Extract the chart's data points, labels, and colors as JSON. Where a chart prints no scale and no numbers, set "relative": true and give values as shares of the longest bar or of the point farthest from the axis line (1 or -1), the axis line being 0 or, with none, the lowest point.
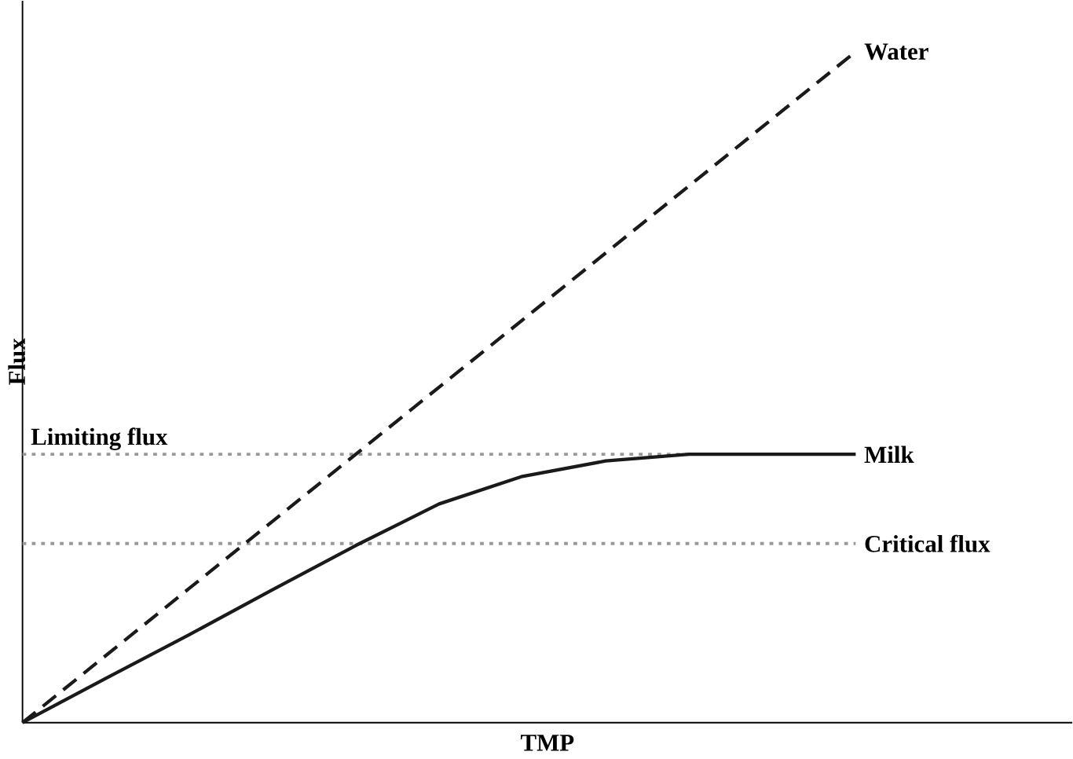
{
  "chart_data": {
    "type": "line",
    "relative": true,
    "xlabel": "TMP",
    "ylabel": "Flux",
    "categories": [
      null,
      null,
      null,
      null,
      null,
      null,
      null,
      null,
      null,
      null,
      null
    ],
    "series": [
      {
        "name": "Water",
        "color": "#1a1a1a",
        "line_style": "dashed",
        "values": [
          0,
          0.1,
          0.2,
          0.3,
          0.4,
          0.5,
          0.6,
          0.7,
          0.8,
          0.9,
          1
        ]
      },
      {
        "name": "Milk",
        "color": "#1a1a1a",
        "line_style": "solid",
        "values": [
          0,
          0.066,
          0.131,
          0.198,
          0.264,
          0.326,
          0.367,
          0.39,
          0.4,
          0.4,
          0.4
        ]
      }
    ],
    "ref_lines": [
      {
        "axis": "y",
        "value": 0.4,
        "label": "Limiting flux",
        "color": "#999999",
        "line_style": "dotted"
      },
      {
        "axis": "y",
        "value": 0.267,
        "label": "Critical flux",
        "color": "#999999",
        "line_style": "dotted"
      }
    ],
    "marker": "none"
  }
}
